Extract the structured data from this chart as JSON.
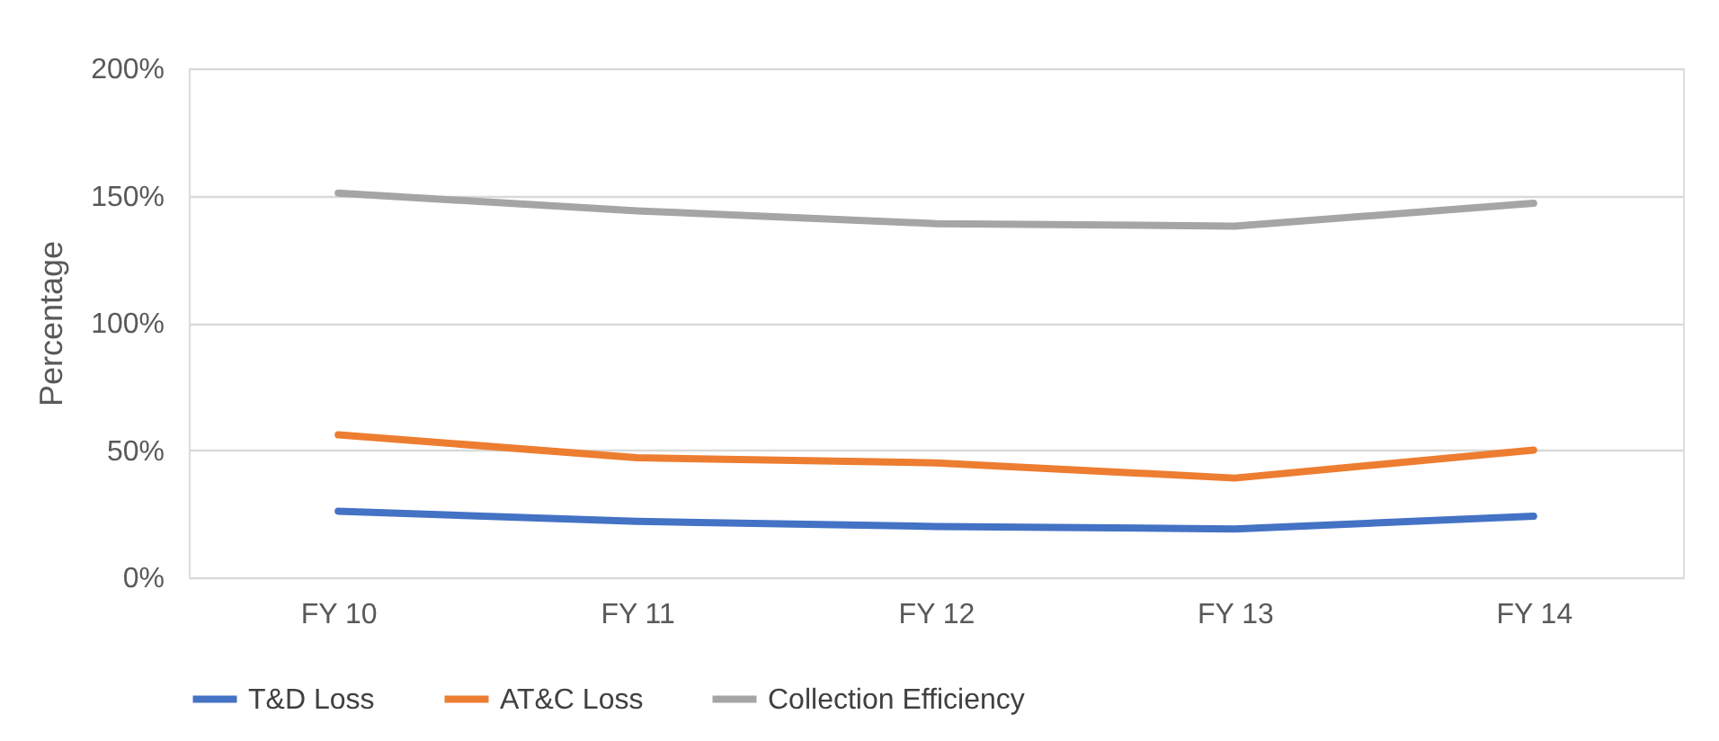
{
  "chart_data": {
    "type": "line",
    "ylabel": "Percentage",
    "categories": [
      "FY 10",
      "FY 11",
      "FY 12",
      "FY 13",
      "FY 14"
    ],
    "series": [
      {
        "name": "T&D Loss",
        "color": "#4472c4",
        "values": [
          26,
          22,
          20,
          19,
          24
        ]
      },
      {
        "name": "AT&C Loss",
        "color": "#ed7d31",
        "values": [
          56,
          47,
          45,
          39,
          50
        ]
      },
      {
        "name": "Collection Efficiency",
        "color": "#a5a5a5",
        "values": [
          151,
          144,
          139,
          138,
          147
        ]
      }
    ],
    "ylim": [
      0,
      200
    ],
    "yticks": [
      {
        "value": 0,
        "label": "0%"
      },
      {
        "value": 50,
        "label": "50%"
      },
      {
        "value": 100,
        "label": "100%"
      },
      {
        "value": 150,
        "label": "150%"
      },
      {
        "value": 200,
        "label": "200%"
      }
    ],
    "grid": "y",
    "legend": "bottom",
    "marker": "none",
    "line_style": "solid"
  }
}
